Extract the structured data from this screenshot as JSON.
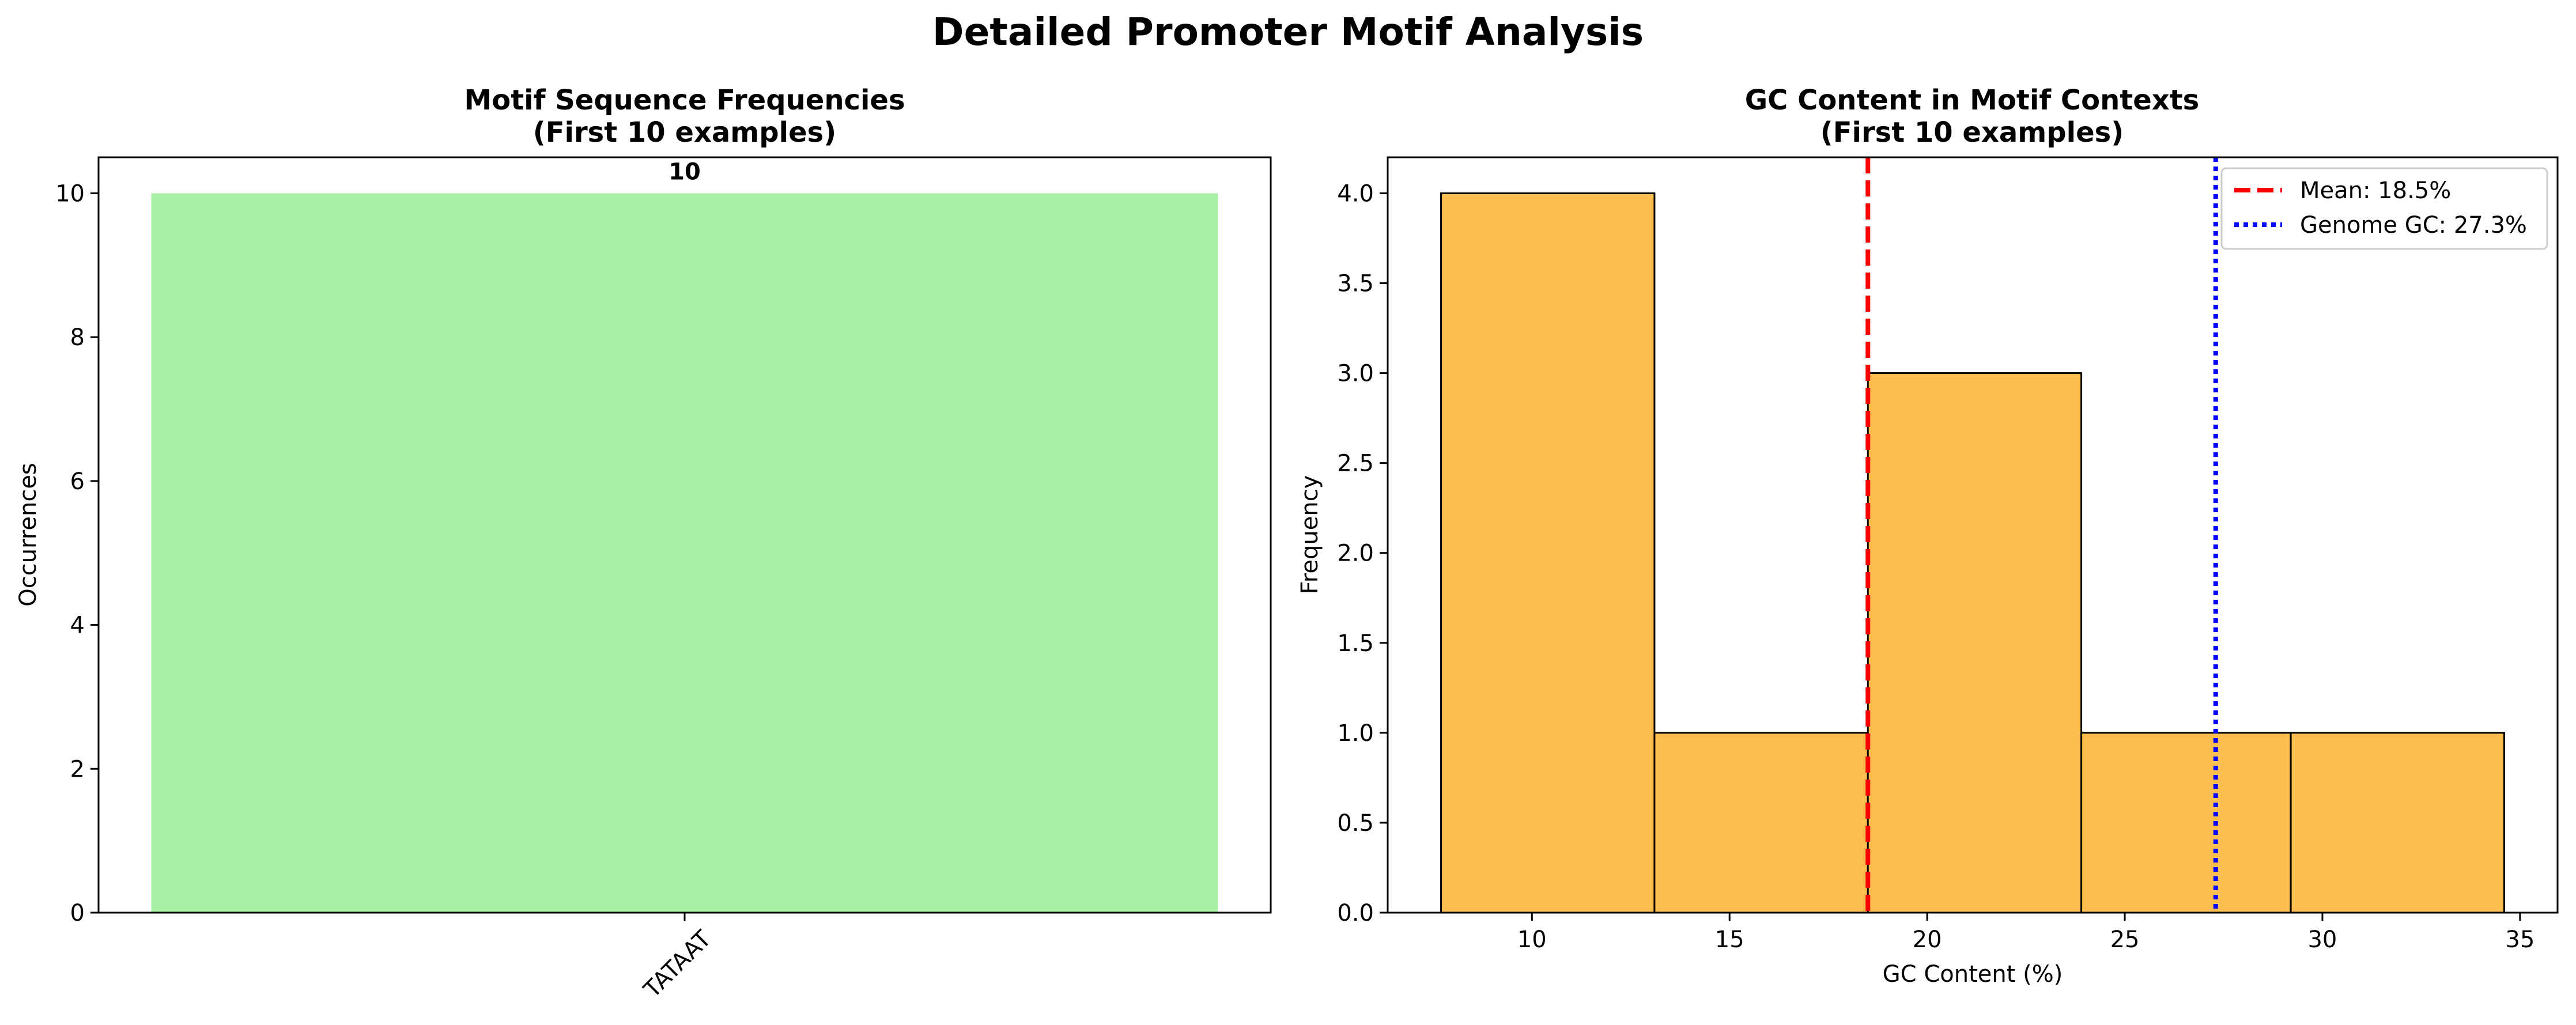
{
  "title": "Detailed Promoter Motif Analysis",
  "chart_data": [
    {
      "type": "bar",
      "title_lines": [
        "Motif Sequence Frequencies",
        "(First 10 examples)"
      ],
      "xlabel": "",
      "ylabel": "Occurrences",
      "categories": [
        "TATAAT"
      ],
      "values": [
        10
      ],
      "data_labels": [
        "10"
      ],
      "ylim": [
        0,
        10.5
      ],
      "yticks": [
        0,
        2,
        4,
        6,
        8,
        10
      ],
      "grid": false,
      "colors": {
        "bar": "#a8f0a6"
      }
    },
    {
      "type": "bar",
      "subtype": "histogram",
      "title_lines": [
        "GC Content in Motif Contexts",
        "(First 10 examples)"
      ],
      "xlabel": "GC Content (%)",
      "ylabel": "Frequency",
      "bin_edges": [
        7.7,
        13.1,
        18.5,
        23.9,
        29.2,
        34.6
      ],
      "values": [
        4,
        1,
        3,
        1,
        1
      ],
      "xlim": [
        6.35,
        35.95
      ],
      "ylim": [
        0,
        4.2
      ],
      "xticks": [
        10,
        15,
        20,
        25,
        30,
        35
      ],
      "yticks": [
        "0.0",
        "0.5",
        "1.0",
        "1.5",
        "2.0",
        "2.5",
        "3.0",
        "3.5",
        "4.0"
      ],
      "vlines": [
        {
          "label": "Mean: 18.5%",
          "x": 18.5,
          "color": "#ff0000",
          "style": "dashed"
        },
        {
          "label": "Genome GC: 27.3%",
          "x": 27.3,
          "color": "#0000ff",
          "style": "dotted"
        }
      ],
      "legend_placement": "top-right",
      "grid": false,
      "colors": {
        "bar": "#fdbe4f",
        "edge": "#000000"
      }
    }
  ]
}
